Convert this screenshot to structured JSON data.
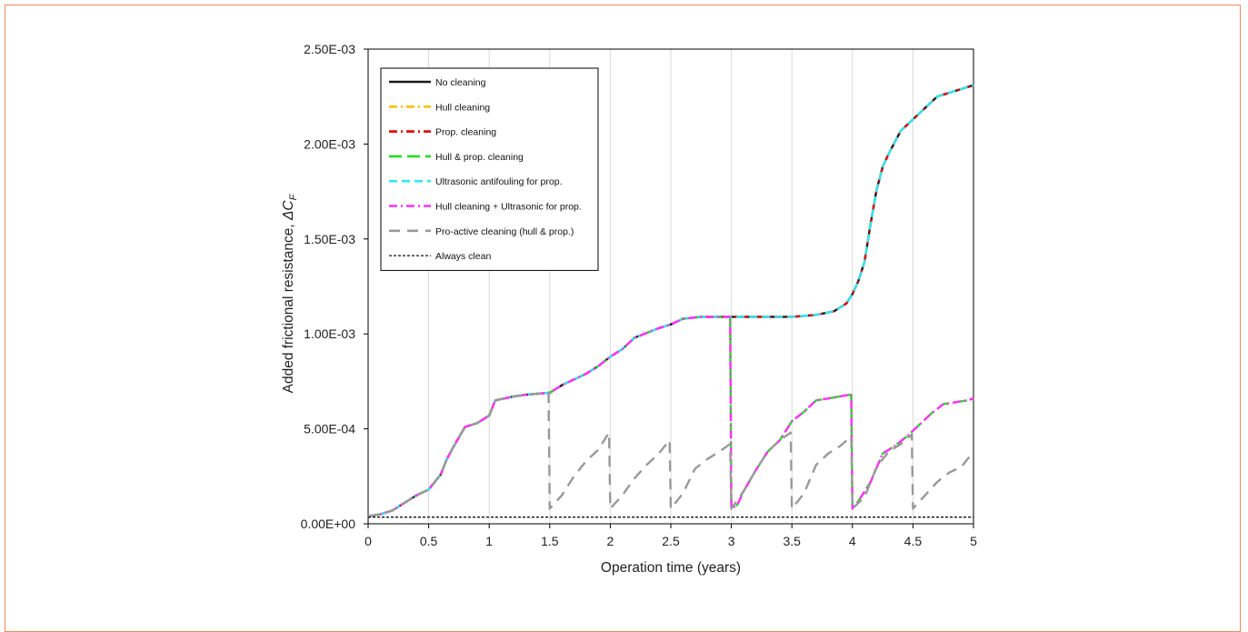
{
  "chart_data": {
    "type": "line",
    "xlabel": "Operation time (years)",
    "ylabel": "Added frictional resistance, ",
    "ylabel_symbol": "ΔC",
    "ylabel_subscript": "F",
    "xlim": [
      0,
      5
    ],
    "ylim": [
      0,
      0.0025
    ],
    "x_ticks": [
      "0",
      "0.5",
      "1",
      "1.5",
      "2",
      "2.5",
      "3",
      "3.5",
      "4",
      "4.5",
      "5"
    ],
    "y_ticks": [
      "0.00E+00",
      "5.00E-04",
      "1.00E-03",
      "1.50E-03",
      "2.00E-03",
      "2.50E-03"
    ],
    "grid": "vertical",
    "legend_position": "top-left",
    "series": [
      {
        "name": "No cleaning",
        "color": "#1a1a1a",
        "dash": "solid",
        "points": [
          [
            0,
            4e-05
          ],
          [
            0.1,
            5e-05
          ],
          [
            0.2,
            7e-05
          ],
          [
            0.3,
            0.00011
          ],
          [
            0.4,
            0.00015
          ],
          [
            0.5,
            0.00018
          ],
          [
            0.6,
            0.00026
          ],
          [
            0.65,
            0.00034
          ],
          [
            0.7,
            0.0004
          ],
          [
            0.8,
            0.00051
          ],
          [
            0.9,
            0.00053
          ],
          [
            1.0,
            0.00057
          ],
          [
            1.05,
            0.00065
          ],
          [
            1.2,
            0.00067
          ],
          [
            1.3,
            0.00068
          ],
          [
            1.5,
            0.00069
          ],
          [
            1.6,
            0.00073
          ],
          [
            1.8,
            0.00079
          ],
          [
            1.9,
            0.00083
          ],
          [
            2.0,
            0.00088
          ],
          [
            2.1,
            0.00092
          ],
          [
            2.2,
            0.00098
          ],
          [
            2.4,
            0.00103
          ],
          [
            2.5,
            0.00105
          ],
          [
            2.6,
            0.00108
          ],
          [
            2.75,
            0.00109
          ],
          [
            3.0,
            0.00109
          ],
          [
            3.25,
            0.00109
          ],
          [
            3.5,
            0.00109
          ],
          [
            3.7,
            0.0011
          ],
          [
            3.85,
            0.00112
          ],
          [
            3.95,
            0.00116
          ],
          [
            4.0,
            0.00121
          ],
          [
            4.05,
            0.00128
          ],
          [
            4.1,
            0.00138
          ],
          [
            4.15,
            0.00158
          ],
          [
            4.2,
            0.00176
          ],
          [
            4.25,
            0.00188
          ],
          [
            4.3,
            0.00195
          ],
          [
            4.35,
            0.00201
          ],
          [
            4.4,
            0.00207
          ],
          [
            4.5,
            0.00213
          ],
          [
            4.6,
            0.00219
          ],
          [
            4.7,
            0.00225
          ],
          [
            4.8,
            0.00227
          ],
          [
            4.9,
            0.00229
          ],
          [
            5.0,
            0.00231
          ]
        ]
      },
      {
        "name": "Hull cleaning",
        "color": "#ffc000",
        "dash": "dashdot",
        "same_as": "Hull & prop. cleaning"
      },
      {
        "name": "Prop. cleaning",
        "color": "#e00000",
        "dash": "dashdot",
        "same_as": "No cleaning"
      },
      {
        "name": "Hull & prop. cleaning",
        "color": "#22dd22",
        "dash": "longdash",
        "points": [
          [
            0,
            4e-05
          ],
          [
            0.1,
            5e-05
          ],
          [
            0.2,
            7e-05
          ],
          [
            0.3,
            0.00011
          ],
          [
            0.4,
            0.00015
          ],
          [
            0.5,
            0.00018
          ],
          [
            0.6,
            0.00026
          ],
          [
            0.65,
            0.00034
          ],
          [
            0.7,
            0.0004
          ],
          [
            0.8,
            0.00051
          ],
          [
            0.9,
            0.00053
          ],
          [
            1.0,
            0.00057
          ],
          [
            1.05,
            0.00065
          ],
          [
            1.2,
            0.00067
          ],
          [
            1.3,
            0.00068
          ],
          [
            1.5,
            0.00069
          ],
          [
            1.6,
            0.00073
          ],
          [
            1.8,
            0.00079
          ],
          [
            1.9,
            0.00083
          ],
          [
            2.0,
            0.00088
          ],
          [
            2.1,
            0.00092
          ],
          [
            2.2,
            0.00098
          ],
          [
            2.4,
            0.00103
          ],
          [
            2.5,
            0.00105
          ],
          [
            2.6,
            0.00108
          ],
          [
            2.75,
            0.00109
          ],
          [
            2.99,
            0.00109
          ],
          [
            3.0,
            8e-05
          ],
          [
            3.05,
            0.0001
          ],
          [
            3.1,
            0.00017
          ],
          [
            3.2,
            0.00028
          ],
          [
            3.3,
            0.00038
          ],
          [
            3.4,
            0.00044
          ],
          [
            3.5,
            0.00054
          ],
          [
            3.6,
            0.00059
          ],
          [
            3.7,
            0.00065
          ],
          [
            3.8,
            0.00066
          ],
          [
            3.98,
            0.00068
          ],
          [
            3.99,
            0.00068
          ],
          [
            4.0,
            8e-05
          ],
          [
            4.05,
            0.00012
          ],
          [
            4.15,
            0.00022
          ],
          [
            4.25,
            0.00037
          ],
          [
            4.35,
            0.00041
          ],
          [
            4.45,
            0.00046
          ],
          [
            4.55,
            0.00052
          ],
          [
            4.65,
            0.00058
          ],
          [
            4.75,
            0.00063
          ],
          [
            4.85,
            0.00064
          ],
          [
            4.95,
            0.00065
          ],
          [
            5.0,
            0.00066
          ]
        ]
      },
      {
        "name": "Ultrasonic antifouling for prop.",
        "color": "#33e6f0",
        "dash": "dash",
        "same_as": "No cleaning"
      },
      {
        "name": "Hull cleaning + Ultrasonic for prop.",
        "color": "#ff33ff",
        "dash": "dashdot",
        "same_as": "Hull & prop. cleaning"
      },
      {
        "name": "Pro-active cleaning (hull & prop.)",
        "color": "#999999",
        "dash": "bigdash",
        "points": [
          [
            0,
            4e-05
          ],
          [
            0.1,
            5e-05
          ],
          [
            0.2,
            7e-05
          ],
          [
            0.3,
            0.00011
          ],
          [
            0.4,
            0.00015
          ],
          [
            0.5,
            0.00018
          ],
          [
            0.6,
            0.00026
          ],
          [
            0.65,
            0.00034
          ],
          [
            0.7,
            0.0004
          ],
          [
            0.8,
            0.00051
          ],
          [
            0.9,
            0.00053
          ],
          [
            1.0,
            0.00057
          ],
          [
            1.05,
            0.00065
          ],
          [
            1.2,
            0.00067
          ],
          [
            1.3,
            0.00068
          ],
          [
            1.49,
            0.00069
          ],
          [
            1.5,
            8e-05
          ],
          [
            1.6,
            0.00015
          ],
          [
            1.7,
            0.00025
          ],
          [
            1.8,
            0.00033
          ],
          [
            1.9,
            0.00039
          ],
          [
            1.99,
            0.00048
          ],
          [
            2.0,
            8e-05
          ],
          [
            2.1,
            0.00015
          ],
          [
            2.2,
            0.00024
          ],
          [
            2.3,
            0.00031
          ],
          [
            2.4,
            0.00037
          ],
          [
            2.49,
            0.00044
          ],
          [
            2.5,
            8e-05
          ],
          [
            2.6,
            0.00016
          ],
          [
            2.7,
            0.00029
          ],
          [
            2.8,
            0.00034
          ],
          [
            2.9,
            0.00038
          ],
          [
            2.99,
            0.00042
          ],
          [
            3.0,
            8e-05
          ],
          [
            3.1,
            0.00017
          ],
          [
            3.2,
            0.00028
          ],
          [
            3.3,
            0.00038
          ],
          [
            3.4,
            0.00044
          ],
          [
            3.49,
            0.00048
          ],
          [
            3.5,
            8e-05
          ],
          [
            3.6,
            0.00016
          ],
          [
            3.7,
            0.00031
          ],
          [
            3.8,
            0.00037
          ],
          [
            3.9,
            0.00041
          ],
          [
            3.99,
            0.00046
          ],
          [
            4.0,
            8e-05
          ],
          [
            4.1,
            0.00014
          ],
          [
            4.2,
            0.0003
          ],
          [
            4.3,
            0.00038
          ],
          [
            4.4,
            0.00042
          ],
          [
            4.49,
            0.00047
          ],
          [
            4.5,
            8e-05
          ],
          [
            4.6,
            0.00015
          ],
          [
            4.7,
            0.00022
          ],
          [
            4.8,
            0.00027
          ],
          [
            4.9,
            0.0003
          ],
          [
            5.0,
            0.00038
          ]
        ]
      },
      {
        "name": "Always clean",
        "color": "#111111",
        "dash": "dotted",
        "points": [
          [
            0,
            3.5e-05
          ],
          [
            5,
            3.5e-05
          ]
        ]
      }
    ]
  }
}
